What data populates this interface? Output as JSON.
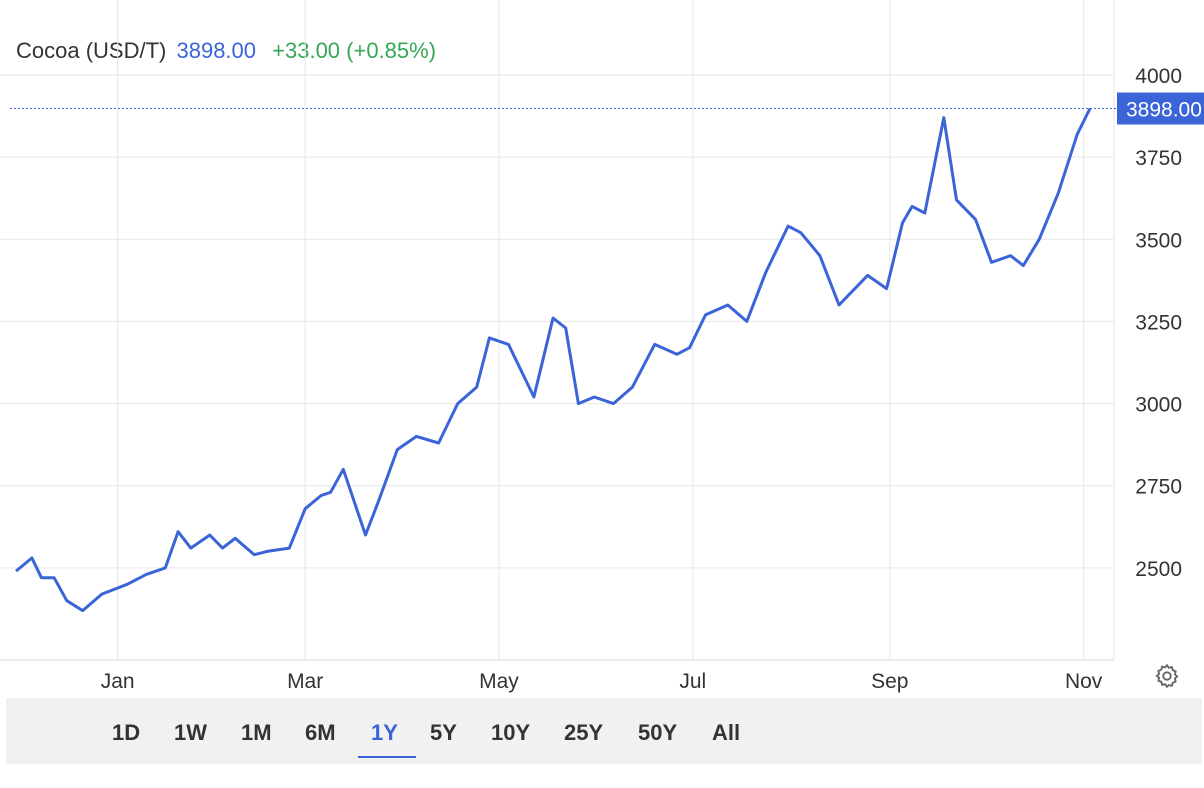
{
  "header": {
    "instrument": "Cocoa (USD/T)",
    "price": "3898.00",
    "change": "+33.00 (+0.85%)"
  },
  "colors": {
    "line": "#3a64d8",
    "price_text": "#3a64d8",
    "change_positive": "#34a853",
    "grid": "#e6e6e6",
    "axis_text": "#333333",
    "toolbar_bg": "#f1f1f1"
  },
  "icons": {
    "settings": "gear-icon"
  },
  "range_buttons": [
    "1D",
    "1W",
    "1M",
    "6M",
    "1Y",
    "5Y",
    "10Y",
    "25Y",
    "50Y",
    "All"
  ],
  "active_range": "1Y",
  "chart_data": {
    "type": "line",
    "title": "Cocoa (USD/T)",
    "series": [
      {
        "x": [
          "2022-11-30",
          "2022-12-05",
          "2022-12-08",
          "2022-12-12",
          "2022-12-16",
          "2022-12-21",
          "2022-12-27",
          "2023-01-04",
          "2023-01-10",
          "2023-01-16",
          "2023-01-20",
          "2023-01-24",
          "2023-01-30",
          "2023-02-03",
          "2023-02-07",
          "2023-02-13",
          "2023-02-17",
          "2023-02-24",
          "2023-03-01",
          "2023-03-06",
          "2023-03-09",
          "2023-03-13",
          "2023-03-20",
          "2023-03-24",
          "2023-03-30",
          "2023-04-05",
          "2023-04-12",
          "2023-04-18",
          "2023-04-24",
          "2023-04-28",
          "2023-05-04",
          "2023-05-12",
          "2023-05-18",
          "2023-05-22",
          "2023-05-26",
          "2023-05-31",
          "2023-06-06",
          "2023-06-12",
          "2023-06-19",
          "2023-06-26",
          "2023-06-30",
          "2023-07-05",
          "2023-07-12",
          "2023-07-18",
          "2023-07-24",
          "2023-07-31",
          "2023-08-04",
          "2023-08-10",
          "2023-08-16",
          "2023-08-21",
          "2023-08-25",
          "2023-08-31",
          "2023-09-05",
          "2023-09-08",
          "2023-09-12",
          "2023-09-18",
          "2023-09-22",
          "2023-09-28",
          "2023-10-03",
          "2023-10-09",
          "2023-10-13",
          "2023-10-18",
          "2023-10-24",
          "2023-10-30",
          "2023-11-03"
        ],
        "y": [
          2490,
          2530,
          2470,
          2470,
          2400,
          2370,
          2420,
          2450,
          2480,
          2500,
          2610,
          2560,
          2600,
          2560,
          2590,
          2540,
          2550,
          2560,
          2680,
          2720,
          2730,
          2800,
          2600,
          2700,
          2860,
          2900,
          2880,
          3000,
          3050,
          3200,
          3180,
          3020,
          3260,
          3230,
          3000,
          3020,
          3000,
          3050,
          3180,
          3150,
          3170,
          3270,
          3300,
          3250,
          3400,
          3540,
          3520,
          3450,
          3300,
          3350,
          3390,
          3350,
          3550,
          3600,
          3580,
          3870,
          3620,
          3560,
          3430,
          3450,
          3420,
          3500,
          3640,
          3820,
          3898
        ]
      }
    ],
    "x_ticks": [
      "Jan",
      "Mar",
      "May",
      "Jul",
      "Sep",
      "Nov"
    ],
    "y_ticks": [
      2500,
      2750,
      3000,
      3250,
      3500,
      3750,
      4000
    ],
    "ylim": [
      2250,
      4000
    ],
    "last_value_label": "3898.00",
    "xlabel": "",
    "ylabel": "",
    "grid": true,
    "y_axis_side": "right"
  }
}
